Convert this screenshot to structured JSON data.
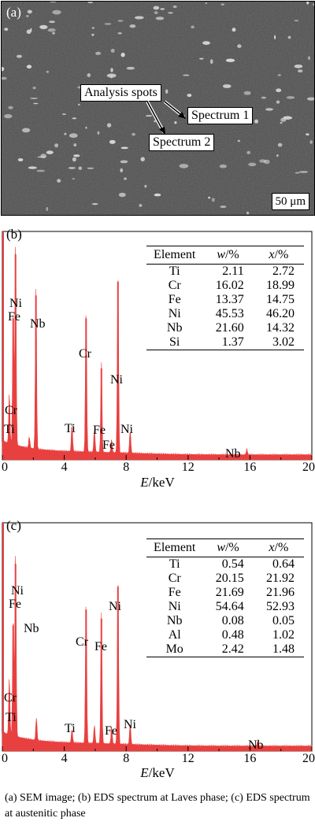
{
  "panel_a": {
    "label": "(a)",
    "callout_title": "Analysis spots",
    "spectrum1": "Spectrum 1",
    "spectrum2": "Spectrum 2",
    "scale_bar": "50 μm"
  },
  "chart_data": [
    {
      "type": "bar",
      "panel": "(b)",
      "xlabel_var": "E",
      "xlabel_unit": "/keV",
      "xlim": [
        0,
        20
      ],
      "xticks": [
        "0",
        "4",
        "8",
        "12",
        "16",
        "20"
      ],
      "peak_labels": [
        "Ni",
        "Fe",
        "Nb",
        "Cr",
        "Ni",
        "Cr",
        "Ti",
        "Fe",
        "Ti",
        "Ni",
        "Fe",
        "Nb"
      ],
      "table": {
        "headers": [
          "Element",
          "w",
          "/%",
          "x",
          "/%"
        ],
        "rows": [
          [
            "Ti",
            "2.11",
            "2.72"
          ],
          [
            "Cr",
            "16.02",
            "18.99"
          ],
          [
            "Fe",
            "13.37",
            "14.75"
          ],
          [
            "Ni",
            "45.53",
            "46.20"
          ],
          [
            "Nb",
            "21.60",
            "14.32"
          ],
          [
            "Si",
            "1.37",
            "3.02"
          ]
        ]
      },
      "peaks": [
        {
          "x": 0.45,
          "y": 0.22
        },
        {
          "x": 0.7,
          "y": 0.62
        },
        {
          "x": 0.85,
          "y": 0.9
        },
        {
          "x": 1.74,
          "y": 0.05
        },
        {
          "x": 2.17,
          "y": 0.72
        },
        {
          "x": 4.5,
          "y": 0.12
        },
        {
          "x": 5.41,
          "y": 0.62
        },
        {
          "x": 5.95,
          "y": 0.1
        },
        {
          "x": 6.4,
          "y": 0.4
        },
        {
          "x": 7.06,
          "y": 0.06
        },
        {
          "x": 7.47,
          "y": 0.78
        },
        {
          "x": 8.26,
          "y": 0.1
        },
        {
          "x": 15.8,
          "y": 0.025
        }
      ]
    },
    {
      "type": "bar",
      "panel": "(c)",
      "xlabel_var": "E",
      "xlabel_unit": "/keV",
      "xlim": [
        0,
        20
      ],
      "xticks": [
        "0",
        "4",
        "8",
        "12",
        "16",
        "20"
      ],
      "peak_labels": [
        "Ni",
        "Fe",
        "Nb",
        "Cr",
        "Fe",
        "Ni",
        "Cr",
        "Ti",
        "Ti",
        "Fe",
        "Ni",
        "Nb"
      ],
      "table": {
        "headers": [
          "Element",
          "w",
          "/%",
          "x",
          "/%"
        ],
        "rows": [
          [
            "Ti",
            "0.54",
            "0.64"
          ],
          [
            "Cr",
            "20.15",
            "21.92"
          ],
          [
            "Fe",
            "21.69",
            "21.96"
          ],
          [
            "Ni",
            "54.64",
            "52.93"
          ],
          [
            "Nb",
            "0.08",
            "0.05"
          ],
          [
            "Al",
            "0.48",
            "1.02"
          ],
          [
            "Mo",
            "2.42",
            "1.48"
          ]
        ]
      },
      "peaks": [
        {
          "x": 0.45,
          "y": 0.25
        },
        {
          "x": 0.7,
          "y": 0.55
        },
        {
          "x": 0.85,
          "y": 0.82
        },
        {
          "x": 2.2,
          "y": 0.1
        },
        {
          "x": 4.5,
          "y": 0.06
        },
        {
          "x": 5.41,
          "y": 0.62
        },
        {
          "x": 5.95,
          "y": 0.08
        },
        {
          "x": 6.4,
          "y": 0.58
        },
        {
          "x": 7.06,
          "y": 0.08
        },
        {
          "x": 7.47,
          "y": 0.72
        },
        {
          "x": 8.26,
          "y": 0.09
        },
        {
          "x": 16.5,
          "y": 0.02
        }
      ]
    }
  ],
  "caption": "(a) SEM image; (b) EDS spectrum at Laves phase; (c) EDS spectrum at austenitic phase",
  "colors": {
    "spectrum": "#e8403f",
    "sem_background": "#4a4a4a",
    "sem_particles": "#d8d8d8"
  }
}
